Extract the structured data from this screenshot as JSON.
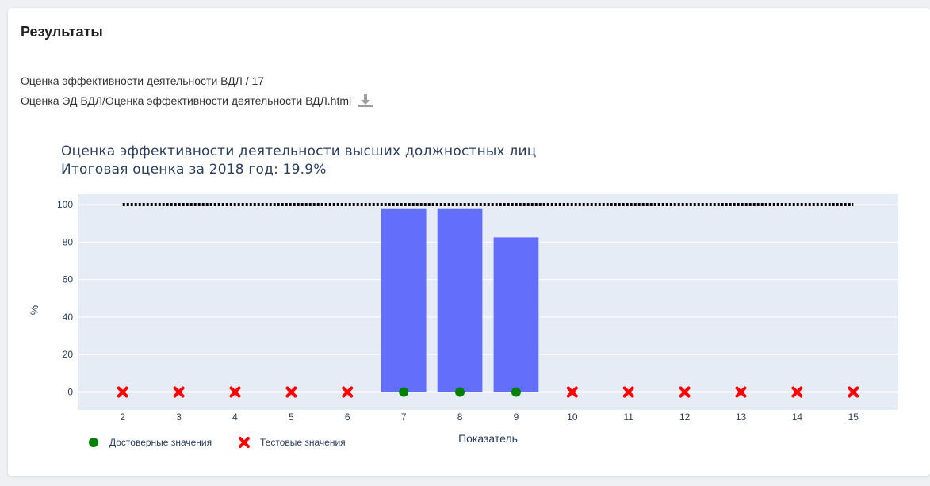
{
  "card": {
    "title": "Результаты",
    "meta_line1": "Оценка эффективности деятельности ВДЛ / 17",
    "meta_line2": "Оценка ЭД ВДЛ/Оценка эффективности деятельности ВДЛ.html",
    "download_icon": "download-icon"
  },
  "chart_data": {
    "type": "bar",
    "title": "Оценка эффективности деятельности высших должностных лиц",
    "subtitle": "Итоговая оценка за 2018 год: 19.9%",
    "xlabel": "Показатель",
    "ylabel": "%",
    "categories": [
      2,
      3,
      4,
      5,
      6,
      7,
      8,
      9,
      10,
      11,
      12,
      13,
      14,
      15
    ],
    "values": [
      0,
      0,
      0,
      0,
      0,
      98,
      98,
      82.5,
      0,
      0,
      0,
      0,
      0,
      0
    ],
    "bar_color": "#636efa",
    "ylim": [
      -9.5,
      105.5
    ],
    "xlim": [
      1.2,
      15.8
    ],
    "yticks": [
      0,
      20,
      40,
      60,
      80,
      100
    ],
    "reference_line": {
      "y": 100,
      "x_from": 2,
      "x_to": 15,
      "color": "#000000",
      "style": "dotted"
    },
    "markers": {
      "valid": {
        "name": "Достоверные значения",
        "color": "#008000",
        "symbol": "circle",
        "x": [
          7,
          8,
          9
        ],
        "y": [
          0,
          0,
          0
        ]
      },
      "test": {
        "name": "Тестовые значения",
        "color": "#ff0000",
        "symbol": "x",
        "x": [
          2,
          3,
          4,
          5,
          6,
          10,
          11,
          12,
          13,
          14,
          15
        ],
        "y": [
          0,
          0,
          0,
          0,
          0,
          0,
          0,
          0,
          0,
          0,
          0
        ]
      }
    },
    "grid": true,
    "plot_bg": "#e5ecf6",
    "legend_position": "bottom-left"
  }
}
